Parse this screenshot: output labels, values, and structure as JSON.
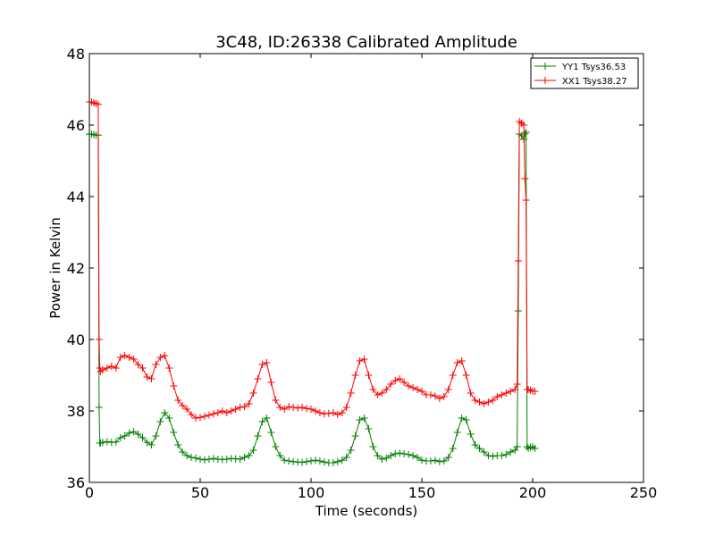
{
  "chart_data": {
    "type": "line",
    "title": "3C48, ID:26338 Calibrated Amplitude",
    "xlabel": "Time (seconds)",
    "ylabel": "Power in Kelvin",
    "xlim": [
      0,
      250
    ],
    "ylim": [
      36,
      48
    ],
    "xticks": [
      0,
      50,
      100,
      150,
      200,
      250
    ],
    "yticks": [
      36,
      38,
      40,
      42,
      44,
      46,
      48
    ],
    "grid": false,
    "legend_position": "top-right",
    "marker": "+",
    "series": [
      {
        "name": "YY1 Tsys36.53",
        "color": "#008000",
        "x": [
          0,
          1,
          2,
          3,
          4,
          4.4,
          4.7,
          5,
          6,
          8,
          10,
          12,
          14,
          16,
          18,
          20,
          22,
          24,
          26,
          28,
          30,
          32,
          34,
          36,
          38,
          40,
          42,
          44,
          46,
          48,
          50,
          52,
          54,
          56,
          58,
          60,
          62,
          64,
          66,
          68,
          70,
          72,
          74,
          76,
          78,
          80,
          82,
          84,
          86,
          88,
          90,
          92,
          94,
          96,
          98,
          100,
          102,
          104,
          106,
          108,
          110,
          112,
          114,
          116,
          118,
          120,
          122,
          124,
          126,
          128,
          130,
          132,
          134,
          136,
          138,
          140,
          142,
          144,
          146,
          148,
          150,
          152,
          154,
          156,
          158,
          160,
          162,
          164,
          166,
          168,
          170,
          172,
          174,
          176,
          178,
          180,
          182,
          184,
          186,
          188,
          190,
          192,
          193,
          193.5,
          194,
          195,
          196,
          196.5,
          197,
          197.5,
          198,
          199,
          200,
          201
        ],
        "values": [
          45.75,
          45.75,
          45.73,
          45.72,
          45.72,
          38.1,
          37.1,
          37.1,
          37.12,
          37.14,
          37.12,
          37.13,
          37.25,
          37.3,
          37.38,
          37.42,
          37.35,
          37.25,
          37.12,
          37.05,
          37.3,
          37.7,
          37.95,
          37.8,
          37.4,
          37.05,
          36.85,
          36.75,
          36.7,
          36.68,
          36.65,
          36.63,
          36.65,
          36.67,
          36.65,
          36.64,
          36.65,
          36.67,
          36.66,
          36.65,
          36.7,
          36.75,
          36.9,
          37.3,
          37.7,
          37.8,
          37.4,
          37.0,
          36.75,
          36.62,
          36.6,
          36.58,
          36.57,
          36.56,
          36.58,
          36.6,
          36.62,
          36.6,
          36.57,
          36.55,
          36.55,
          36.58,
          36.62,
          36.7,
          36.9,
          37.3,
          37.75,
          37.8,
          37.5,
          37.0,
          36.75,
          36.65,
          36.68,
          36.75,
          36.8,
          36.82,
          36.8,
          36.78,
          36.75,
          36.7,
          36.62,
          36.6,
          36.6,
          36.62,
          36.58,
          36.6,
          36.7,
          36.95,
          37.4,
          37.8,
          37.75,
          37.35,
          37.05,
          36.95,
          36.85,
          36.75,
          36.73,
          36.75,
          36.75,
          36.78,
          36.85,
          36.9,
          37.0,
          40.8,
          45.75,
          45.7,
          45.6,
          45.75,
          45.8,
          37.0,
          36.95,
          36.98,
          37.0,
          36.95
        ]
      },
      {
        "name": "XX1 Tsys38.27",
        "color": "#ff0000",
        "x": [
          0,
          1,
          2,
          3,
          4,
          4.4,
          4.7,
          5,
          6,
          8,
          10,
          12,
          14,
          16,
          18,
          20,
          22,
          24,
          26,
          28,
          30,
          32,
          34,
          36,
          38,
          40,
          42,
          44,
          46,
          48,
          50,
          52,
          54,
          56,
          58,
          60,
          62,
          64,
          66,
          68,
          70,
          72,
          74,
          76,
          78,
          80,
          82,
          84,
          86,
          88,
          90,
          92,
          94,
          96,
          98,
          100,
          102,
          104,
          106,
          108,
          110,
          112,
          114,
          116,
          118,
          120,
          122,
          124,
          126,
          128,
          130,
          132,
          134,
          136,
          138,
          140,
          142,
          144,
          146,
          148,
          150,
          152,
          154,
          156,
          158,
          160,
          162,
          164,
          166,
          168,
          170,
          172,
          174,
          176,
          178,
          180,
          182,
          184,
          186,
          188,
          190,
          192,
          193,
          193.5,
          194,
          195,
          196,
          196.5,
          197,
          197.5,
          198,
          199,
          200,
          201
        ],
        "values": [
          46.65,
          46.65,
          46.62,
          46.6,
          46.58,
          40.0,
          39.2,
          39.1,
          39.15,
          39.2,
          39.25,
          39.2,
          39.5,
          39.55,
          39.5,
          39.45,
          39.3,
          39.2,
          38.95,
          38.9,
          39.3,
          39.5,
          39.55,
          39.2,
          38.7,
          38.3,
          38.15,
          38.05,
          37.9,
          37.8,
          37.82,
          37.85,
          37.88,
          37.92,
          37.95,
          38.0,
          37.95,
          38.0,
          38.05,
          38.1,
          38.12,
          38.2,
          38.5,
          38.9,
          39.3,
          39.35,
          38.8,
          38.3,
          38.1,
          38.05,
          38.12,
          38.1,
          38.08,
          38.1,
          38.07,
          38.05,
          38.0,
          37.95,
          37.92,
          37.93,
          37.95,
          37.9,
          37.95,
          38.1,
          38.5,
          39.0,
          39.4,
          39.45,
          39.0,
          38.6,
          38.45,
          38.5,
          38.6,
          38.75,
          38.85,
          38.9,
          38.8,
          38.7,
          38.65,
          38.6,
          38.55,
          38.45,
          38.45,
          38.42,
          38.35,
          38.4,
          38.6,
          39.0,
          39.35,
          39.4,
          39.0,
          38.5,
          38.3,
          38.25,
          38.2,
          38.25,
          38.3,
          38.4,
          38.45,
          38.5,
          38.55,
          38.6,
          38.75,
          42.2,
          46.1,
          46.05,
          46.0,
          44.5,
          43.9,
          38.6,
          38.6,
          38.58,
          38.55,
          38.55
        ]
      }
    ]
  }
}
